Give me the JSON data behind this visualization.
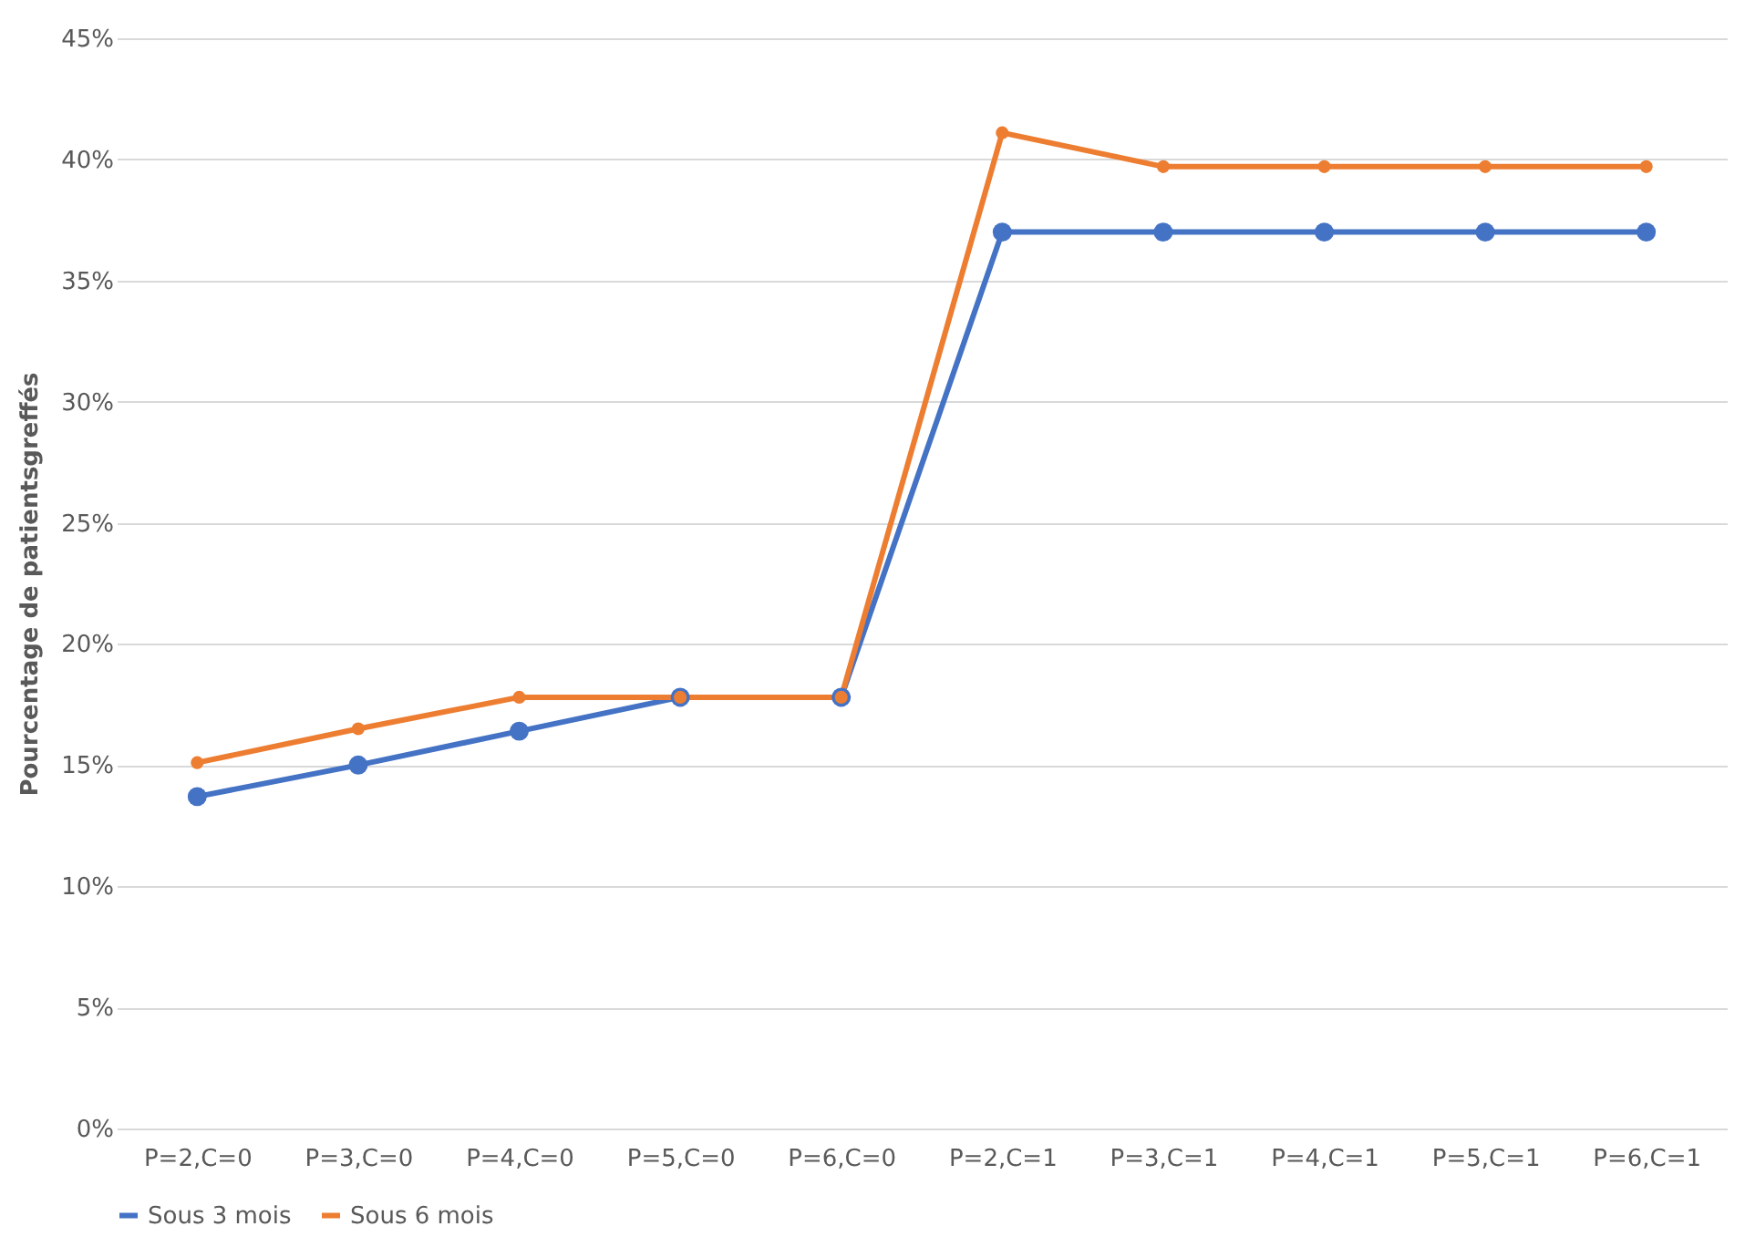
{
  "chart_data": {
    "type": "line",
    "ylabel": "Pourcentage de patientsgreffés",
    "categories": [
      "P=2,C=0",
      "P=3,C=0",
      "P=4,C=0",
      "P=5,C=0",
      "P=6,C=0",
      "P=2,C=1",
      "P=3,C=1",
      "P=4,C=1",
      "P=5,C=1",
      "P=6,C=1"
    ],
    "series": [
      {
        "name": "Sous 3 mois",
        "color": "#4472c4",
        "values": [
          13.7,
          15.0,
          16.4,
          17.8,
          17.8,
          37.0,
          37.0,
          37.0,
          37.0,
          37.0
        ]
      },
      {
        "name": "Sous 6 mois",
        "color": "#ed7d31",
        "values": [
          15.1,
          16.5,
          17.8,
          17.8,
          17.8,
          41.1,
          39.7,
          39.7,
          39.7,
          39.7
        ]
      }
    ],
    "ylim": [
      0,
      45
    ],
    "yticks": [
      {
        "value": 0,
        "label": "0%"
      },
      {
        "value": 5,
        "label": "5%"
      },
      {
        "value": 10,
        "label": "10%"
      },
      {
        "value": 15,
        "label": "15%"
      },
      {
        "value": 20,
        "label": "20%"
      },
      {
        "value": 25,
        "label": "25%"
      },
      {
        "value": 30,
        "label": "30%"
      },
      {
        "value": 35,
        "label": "35%"
      },
      {
        "value": 40,
        "label": "40%"
      },
      {
        "value": 45,
        "label": "45%"
      }
    ],
    "grid": "y",
    "legend": "bottom",
    "marker": "circle",
    "line_style": "solid"
  }
}
